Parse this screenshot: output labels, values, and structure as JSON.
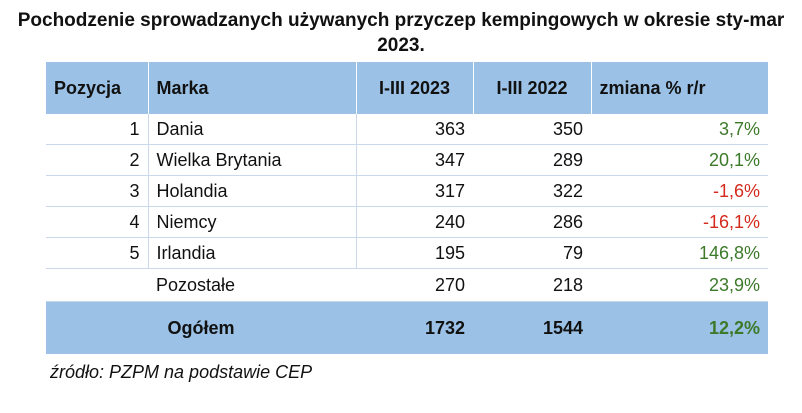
{
  "title": "Pochodzenie sprowadzanych używanych przyczep kempingowych w okresie sty-mar 2023.",
  "table": {
    "headers": {
      "position": "Pozycja",
      "brand": "Marka",
      "y2023": "I-III 2023",
      "y2022": "I-III 2022",
      "change": "zmiana % r/r"
    },
    "rows": [
      {
        "position": "1",
        "brand": "Dania",
        "y2023": "363",
        "y2022": "350",
        "change": "3,7%"
      },
      {
        "position": "2",
        "brand": "Wielka Brytania",
        "y2023": "347",
        "y2022": "289",
        "change": "20,1%"
      },
      {
        "position": "3",
        "brand": "Holandia",
        "y2023": "317",
        "y2022": "322",
        "change": "-1,6%"
      },
      {
        "position": "4",
        "brand": "Niemcy",
        "y2023": "240",
        "y2022": "286",
        "change": "-16,1%"
      },
      {
        "position": "5",
        "brand": "Irlandia",
        "y2023": "195",
        "y2022": "79",
        "change": "146,8%"
      }
    ],
    "other": {
      "brand": "Pozostałe",
      "y2023": "270",
      "y2022": "218",
      "change": "23,9%"
    },
    "total": {
      "label": "Ogółem",
      "y2023": "1732",
      "y2022": "1544",
      "change": "12,2%"
    }
  },
  "source": "źródło: PZPM na podstawie CEP",
  "colors": {
    "header_bg": "#9bc2e6",
    "positive": "#3c7a2a",
    "negative": "#d42a1e"
  }
}
